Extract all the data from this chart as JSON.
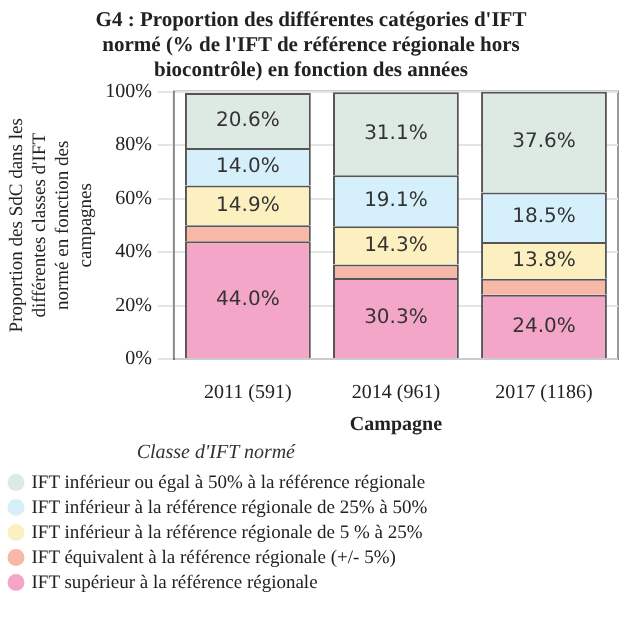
{
  "chart_data": {
    "type": "bar",
    "stacked": true,
    "title": "G4 : Proportion des différentes catégories d'IFT normé (% de l'IFT de référence régionale hors biocontrôle) en fonction des années",
    "xlabel": "Campagne",
    "ylabel": "Proportion des SdC dans les différentes classes d'IFT normé en fonction des campagnes",
    "legend_title": "Classe d'IFT normé",
    "categories": [
      "2011 (591)",
      "2014 (961)",
      "2017 (1186)"
    ],
    "ylim": [
      0,
      100
    ],
    "yticks": [
      {
        "value": 0,
        "label": "0%"
      },
      {
        "value": 20,
        "label": "20%"
      },
      {
        "value": 40,
        "label": "40%"
      },
      {
        "value": 60,
        "label": "60%"
      },
      {
        "value": 80,
        "label": "80%"
      },
      {
        "value": 100,
        "label": "100%"
      }
    ],
    "grid": "y",
    "legend": "bottom",
    "series": [
      {
        "name": "IFT supérieur à la référence régionale",
        "color": "#f4a6c8",
        "values": [
          44.0,
          30.3,
          24.0
        ],
        "value_labels": [
          "44.0%",
          "30.3%",
          "24.0%"
        ]
      },
      {
        "name": "IFT équivalent à la référence régionale (+/- 5%)",
        "color": "#f8b8a8",
        "values": [
          6,
          5,
          6
        ],
        "value_labels": [
          null,
          null,
          null
        ]
      },
      {
        "name": "IFT inférieur à la référence régionale de 5 % à 25%",
        "color": "#fdf0c0",
        "values": [
          14.9,
          14.3,
          13.8
        ],
        "value_labels": [
          "14.9%",
          "14.3%",
          "13.8%"
        ]
      },
      {
        "name": "IFT inférieur à la référence régionale de 25% à 50%",
        "color": "#d6f0fb",
        "values": [
          14.0,
          19.1,
          18.5
        ],
        "value_labels": [
          "14.0%",
          "19.1%",
          "18.5%"
        ]
      },
      {
        "name": "IFT inférieur ou égal à 50% à la référence régionale",
        "color": "#dde9e3",
        "values": [
          20.6,
          31.1,
          37.6
        ],
        "value_labels": [
          "20.6%",
          "31.1%",
          "37.6%"
        ]
      }
    ]
  }
}
